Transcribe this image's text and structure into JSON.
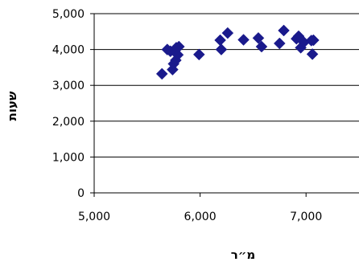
{
  "chart_data": {
    "type": "scatter",
    "title": "",
    "xlabel": "מ״ר",
    "ylabel": "שעות",
    "xlim": [
      5000,
      7500
    ],
    "ylim": [
      0,
      5000
    ],
    "x_ticks": [
      "5,000",
      "6,000",
      "7,000"
    ],
    "y_ticks": [
      "0",
      "1,000",
      "2,000",
      "3,000",
      "4,000",
      "5,000"
    ],
    "grid": "horizontal",
    "legend": "none",
    "marker": "diamond",
    "series": [
      {
        "color": "#1a1a8c",
        "points": [
          [
            5640,
            3320
          ],
          [
            5690,
            4000
          ],
          [
            5720,
            3950
          ],
          [
            5740,
            3440
          ],
          [
            5750,
            3600
          ],
          [
            5770,
            3700
          ],
          [
            5775,
            4050
          ],
          [
            5790,
            3850
          ],
          [
            5800,
            4080
          ],
          [
            5990,
            3860
          ],
          [
            6190,
            4260
          ],
          [
            6200,
            4000
          ],
          [
            6260,
            4460
          ],
          [
            6410,
            4270
          ],
          [
            6550,
            4320
          ],
          [
            6580,
            4080
          ],
          [
            6750,
            4170
          ],
          [
            6790,
            4530
          ],
          [
            6910,
            4300
          ],
          [
            6930,
            4370
          ],
          [
            6950,
            4050
          ],
          [
            6980,
            4200
          ],
          [
            7050,
            4250
          ],
          [
            7060,
            3870
          ],
          [
            7070,
            4260
          ]
        ]
      }
    ]
  }
}
